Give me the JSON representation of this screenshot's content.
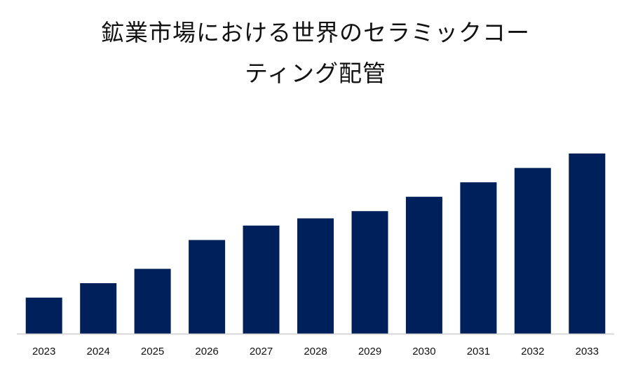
{
  "title_lines": [
    "鉱業市場における世界のセラミックコー",
    "ティング配管"
  ],
  "colors": {
    "bar": "#00205b",
    "axis": "#cccccc",
    "text": "#111111"
  },
  "chart_data": {
    "type": "bar",
    "title": "鉱業市場における世界のセラミックコーティング配管",
    "categories": [
      "2023",
      "2024",
      "2025",
      "2026",
      "2027",
      "2028",
      "2029",
      "2030",
      "2031",
      "2032",
      "2033"
    ],
    "values": [
      2.0,
      2.8,
      3.6,
      5.2,
      6.0,
      6.4,
      6.8,
      7.6,
      8.4,
      9.2,
      10.0
    ],
    "xlabel": "",
    "ylabel": "",
    "ylim": [
      0,
      10.0
    ],
    "grid": false,
    "legend": "none"
  }
}
